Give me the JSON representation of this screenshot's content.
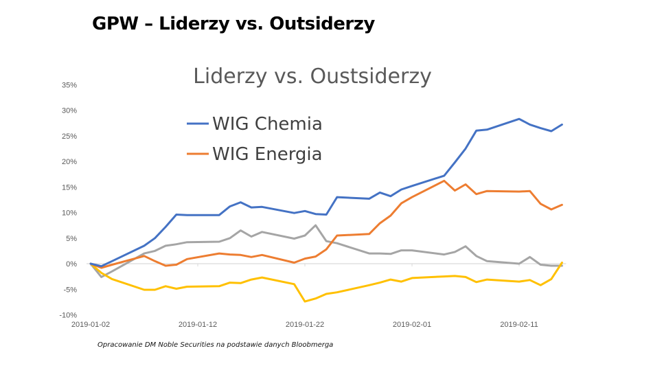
{
  "slide": {
    "title": "GPW – Liderzy vs. Outsiderzy",
    "source_note": "Opracowanie DM Noble Securities  na podstawie danych Bloobmerga"
  },
  "chart_data": {
    "type": "line",
    "title": "Liderzy vs. Oustsiderzy",
    "xlabel": "",
    "ylabel": "",
    "ylim": [
      -10,
      35
    ],
    "y_ticks": [
      35,
      30,
      25,
      20,
      15,
      10,
      5,
      0,
      -5,
      -10
    ],
    "y_tick_labels": [
      "35%",
      "30%",
      "25%",
      "20%",
      "15%",
      "10%",
      "5%",
      "0%",
      "-5%",
      "-10%"
    ],
    "x_range": [
      "2019-01-02",
      "2019-02-15"
    ],
    "x_tick_labels": [
      "2019-01-02",
      "2019-01-12",
      "2019-01-22",
      "2019-02-01",
      "2019-02-11"
    ],
    "legend_position": "top-left",
    "grid": false,
    "x": [
      "2019-01-02",
      "2019-01-03",
      "2019-01-04",
      "2019-01-07",
      "2019-01-08",
      "2019-01-09",
      "2019-01-10",
      "2019-01-11",
      "2019-01-14",
      "2019-01-15",
      "2019-01-16",
      "2019-01-17",
      "2019-01-18",
      "2019-01-21",
      "2019-01-22",
      "2019-01-23",
      "2019-01-24",
      "2019-01-25",
      "2019-01-28",
      "2019-01-29",
      "2019-01-30",
      "2019-01-31",
      "2019-02-01",
      "2019-02-04",
      "2019-02-05",
      "2019-02-06",
      "2019-02-07",
      "2019-02-08",
      "2019-02-11",
      "2019-02-12",
      "2019-02-13",
      "2019-02-14",
      "2019-02-15"
    ],
    "series": [
      {
        "name": "WIG Chemia",
        "color": "#4472C4",
        "in_legend": true,
        "values": [
          0,
          -0.5,
          0.5,
          3.5,
          5,
          7.2,
          9.6,
          9.5,
          9.5,
          11.2,
          12,
          11,
          11.1,
          9.9,
          10.3,
          9.7,
          9.6,
          13,
          12.7,
          13.9,
          13.2,
          14.5,
          15.2,
          17.2,
          19.8,
          22.5,
          26,
          26.2,
          28.3,
          27.2,
          26.5,
          25.9,
          27.2
        ]
      },
      {
        "name": "WIG Energia",
        "color": "#ED7D31",
        "in_legend": true,
        "values": [
          0,
          -0.8,
          -0.2,
          1.5,
          0.5,
          -0.4,
          -0.2,
          0.9,
          2.0,
          1.8,
          1.7,
          1.3,
          1.7,
          0.2,
          1.0,
          1.4,
          2.8,
          5.5,
          5.8,
          7.9,
          9.4,
          11.8,
          13,
          16.2,
          14.3,
          15.5,
          13.6,
          14.2,
          14.1,
          14.2,
          11.7,
          10.6,
          11.5
        ]
      },
      {
        "name": "",
        "color": "#A5A5A5",
        "in_legend": false,
        "values": [
          0,
          -2.6,
          -1.5,
          2.0,
          2.5,
          3.5,
          3.8,
          4.2,
          4.3,
          5,
          6.5,
          5.3,
          6.2,
          4.9,
          5.5,
          7.5,
          4.4,
          4.0,
          2.0,
          2.0,
          1.9,
          2.6,
          2.6,
          1.8,
          2.3,
          3.4,
          1.5,
          0.5,
          0.0,
          1.3,
          -0.2,
          -0.4,
          -0.4
        ]
      },
      {
        "name": "",
        "color": "#FFC000",
        "in_legend": false,
        "values": [
          0,
          -1.8,
          -3,
          -5.1,
          -5.1,
          -4.4,
          -4.9,
          -4.5,
          -4.4,
          -3.7,
          -3.8,
          -3.1,
          -2.7,
          -4,
          -7.4,
          -6.8,
          -5.9,
          -5.6,
          -4.2,
          -3.7,
          -3.1,
          -3.5,
          -2.8,
          -2.5,
          -2.4,
          -2.6,
          -3.6,
          -3.1,
          -3.5,
          -3.2,
          -4.2,
          -3,
          0.2
        ]
      }
    ],
    "axis_color": "#D9D9D9"
  }
}
